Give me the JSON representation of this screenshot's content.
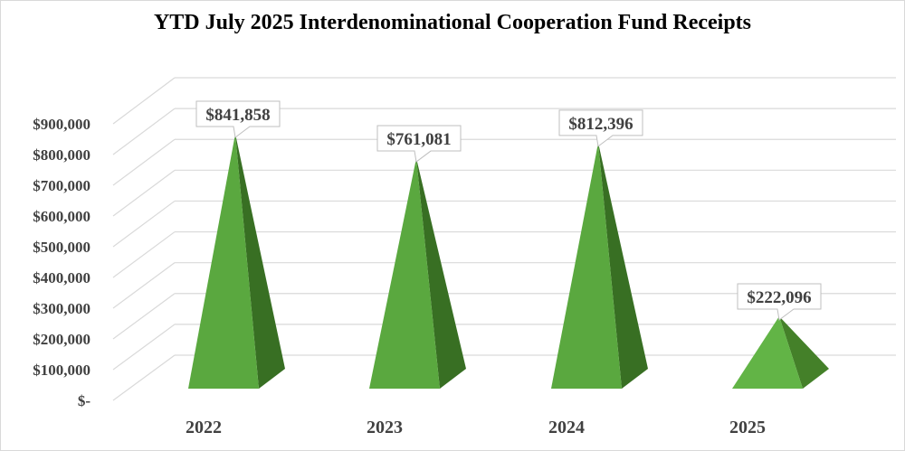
{
  "chart_data": {
    "type": "bar",
    "subtype": "3d-pyramid",
    "title": "YTD July 2025 Interdenominational Cooperation Fund Receipts",
    "xlabel": "",
    "ylabel": "",
    "categories": [
      "2022",
      "2023",
      "2024",
      "2025"
    ],
    "values": [
      841858,
      761081,
      812396,
      222096
    ],
    "data_labels": [
      "$841,858",
      "$761,081",
      "$812,396",
      "$222,096"
    ],
    "ylim": [
      0,
      900000
    ],
    "y_ticks": [
      0,
      100000,
      200000,
      300000,
      400000,
      500000,
      600000,
      700000,
      800000,
      900000
    ],
    "y_tick_labels": [
      "$-",
      "$100,000",
      "$200,000",
      "$300,000",
      "$400,000",
      "$500,000",
      "$600,000",
      "$700,000",
      "$800,000",
      "$900,000"
    ],
    "grid": true,
    "legend": null,
    "colors": {
      "front": "#5aa83f",
      "side": "#386f23",
      "front_2025": "#62b446",
      "side_2025": "#448029",
      "grid": "#d9d9d9"
    }
  }
}
